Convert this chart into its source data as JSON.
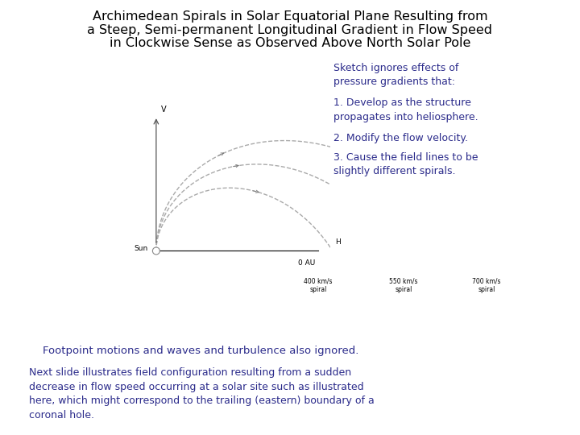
{
  "title_line1": "Archimedean Spirals in Solar Equatorial Plane Resulting from",
  "title_line2": "a Steep, Semi-permanent Longitudinal Gradient in Flow Speed",
  "title_line3": "in Clockwise Sense as Observed Above North Solar Pole",
  "title_color": "#000000",
  "title_fontsize": 11.5,
  "bg_color": "#ffffff",
  "sketch_note_title": "Sketch ignores effects of\npressure gradients that:",
  "sketch_note_1": "1. Develop as the structure\npropagates into heliosphere.",
  "sketch_note_2": "2. Modify the flow velocity.",
  "sketch_note_3": "3. Cause the field lines to be\nslightly different spirals.",
  "footer1": "    Footpoint motions and waves and turbulence also ignored.",
  "footer2": "Next slide illustrates field configuration resulting from a sudden\ndecrease in flow speed occurring at a solar site such as illustrated\nhere, which might correspond to the trailing (eastern) boundary of a\ncoronal hole.",
  "note_color": "#2b2b8b",
  "spiral_color": "#aaaaaa",
  "axis_color": "#000000",
  "label_color": "#000000",
  "spiral_speeds": [
    400,
    550,
    700
  ],
  "spiral_labels": [
    "400 km/s\nspiral",
    "550 km/s\nspiral",
    "700 km/s\nspiral"
  ]
}
